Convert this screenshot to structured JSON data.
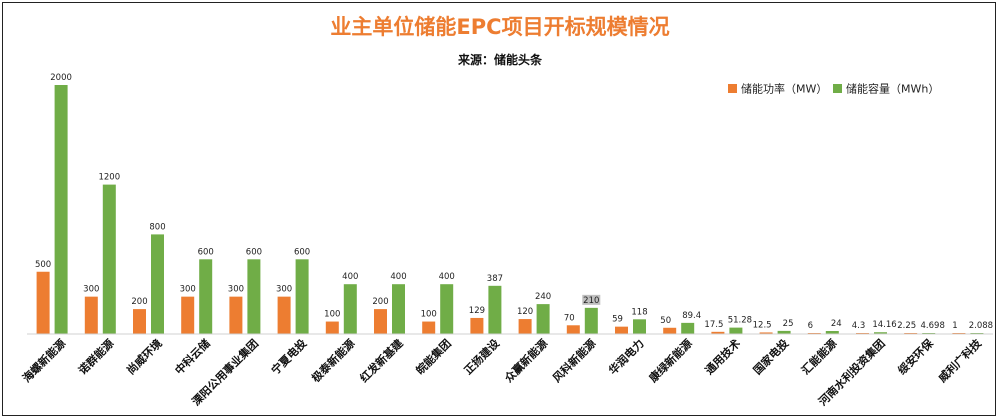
{
  "colors": {
    "power": "#ED7D31",
    "capacity": "#70AD47",
    "title": "#ED7D31",
    "highlight_label_bg": "#BFBFBF"
  },
  "chart_data": {
    "type": "bar",
    "title": "业主单位储能EPC项目开标规模情况",
    "subtitle": "来源：储能头条",
    "legend_position": "top-right",
    "grid": false,
    "categories": [
      "海螺新能源",
      "诺群能源",
      "尚威环境",
      "中科云储",
      "溧阳公用事业集团",
      "宁夏电投",
      "极泰新能源",
      "红发新基建",
      "皖能集团",
      "正扬建设",
      "众赢新能源",
      "风科新能源",
      "华润电力",
      "康绿新能源",
      "通用技术",
      "国家电投",
      "汇能能源",
      "河南水利投资集团",
      "绥安环保",
      "威利广科技"
    ],
    "series": [
      {
        "name": "储能功率（MW）",
        "color": "power",
        "values": [
          500,
          300,
          200,
          300,
          300,
          300,
          100,
          200,
          100,
          129,
          120,
          70,
          59,
          50,
          17.5,
          12.5,
          6,
          4.3,
          2.25,
          1
        ],
        "labels": [
          "500",
          "300",
          "200",
          "300",
          "300",
          "300",
          "100",
          "200",
          "100",
          "129",
          "120",
          "70",
          "59",
          "50",
          "17.5",
          "12.5",
          "6",
          "4.3",
          "2.25",
          "1"
        ]
      },
      {
        "name": "储能容量（MWh）",
        "color": "capacity",
        "values": [
          2000,
          1200,
          800,
          600,
          600,
          600,
          400,
          400,
          400,
          387,
          240,
          210,
          118,
          89.4,
          51.28,
          25,
          24,
          14.16,
          4.698,
          2.088
        ],
        "labels": [
          "2000",
          "1200",
          "800",
          "600",
          "600",
          "600",
          "400",
          "400",
          "400",
          "387",
          "240",
          "210",
          "118",
          "89.4",
          "51.28",
          "25",
          "24",
          "14.16",
          "4.698",
          "2.088"
        ]
      }
    ],
    "highlighted_label": {
      "category_index": 11,
      "series_index": 1
    },
    "ylim": [
      0,
      2000
    ]
  }
}
